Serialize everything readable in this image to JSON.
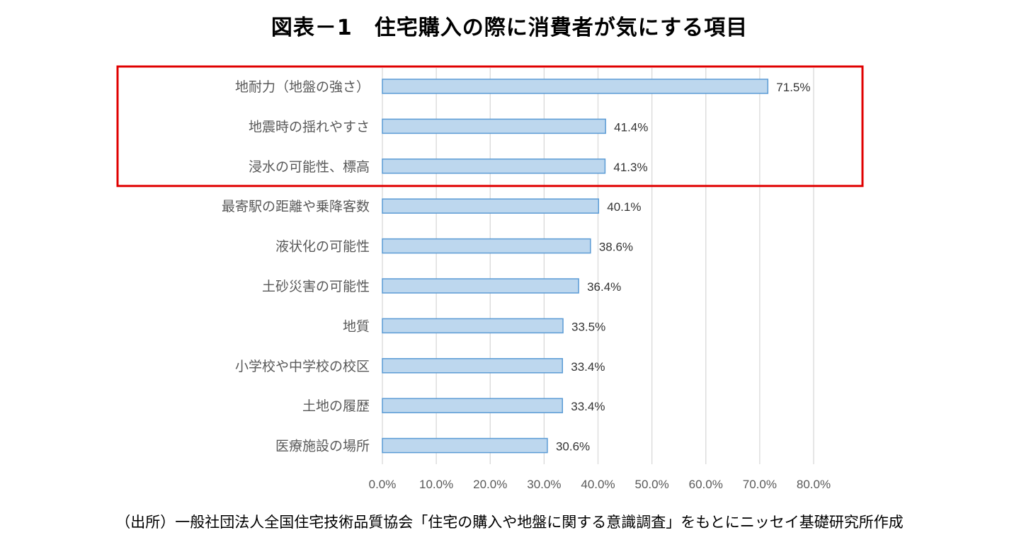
{
  "title": "図表－1　住宅購入の際に消費者が気にする項目",
  "source": "（出所）一般社団法人全国住宅技術品質協会「住宅の購入や地盤に関する意識調査」をもとにニッセイ基礎研究所作成",
  "chart_data": {
    "type": "bar",
    "orientation": "horizontal",
    "categories": [
      "地耐力（地盤の強さ）",
      "地震時の揺れやすさ",
      "浸水の可能性、標高",
      "最寄駅の距離や乗降客数",
      "液状化の可能性",
      "土砂災害の可能性",
      "地質",
      "小学校や中学校の校区",
      "土地の履歴",
      "医療施設の場所"
    ],
    "values": [
      71.5,
      41.4,
      41.3,
      40.1,
      38.6,
      36.4,
      33.5,
      33.4,
      33.4,
      30.6
    ],
    "data_labels": [
      "71.5%",
      "41.4%",
      "41.3%",
      "40.1%",
      "38.6%",
      "36.4%",
      "33.5%",
      "33.4%",
      "33.4%",
      "30.6%"
    ],
    "xlim": [
      0,
      80
    ],
    "x_ticks": [
      0,
      10,
      20,
      30,
      40,
      50,
      60,
      70,
      80
    ],
    "x_tick_labels": [
      "0.0%",
      "10.0%",
      "20.0%",
      "30.0%",
      "40.0%",
      "50.0%",
      "60.0%",
      "70.0%",
      "80.0%"
    ],
    "grid": true,
    "legend": "none",
    "bar_fill": "#BDD7EE",
    "bar_stroke": "#5B9BD5",
    "highlight_color": "#E00000",
    "highlight_categories": [
      0,
      1,
      2
    ]
  }
}
